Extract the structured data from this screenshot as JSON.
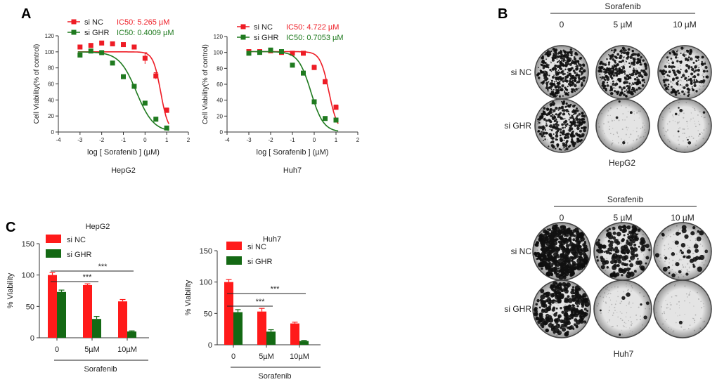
{
  "panels": {
    "A": "A",
    "B": "B",
    "C": "C"
  },
  "colors": {
    "si_nc": "#ee1c25",
    "si_ghr": "#1f7a1f",
    "bar_nc": "#ff1a1a",
    "bar_ghr": "#146914",
    "axis": "#333333"
  },
  "chart_data": [
    {
      "id": "hepg2_dose",
      "type": "scatter",
      "title": "HepG2",
      "xlabel": "log [ Sorafenib ] (µM)",
      "ylabel": "Cell Viability(% of control)",
      "xlim": [
        -4,
        2
      ],
      "ylim": [
        0,
        120
      ],
      "xticks": [
        -4,
        -3,
        -2,
        -1,
        0,
        1,
        2
      ],
      "yticks": [
        0,
        20,
        40,
        60,
        80,
        100,
        120
      ],
      "legend": {
        "position": "top-left"
      },
      "series": [
        {
          "name": "si NC",
          "ic50_label": "IC50: 5.265  µM",
          "x": [
            -3,
            -2.5,
            -2,
            -1.5,
            -1,
            -0.5,
            0,
            0.5,
            1
          ],
          "y": [
            106,
            108,
            111,
            110,
            109,
            106,
            92,
            70,
            27
          ],
          "err": [
            0,
            0,
            0,
            0,
            0,
            0,
            7,
            4,
            3
          ],
          "curve": {
            "top": 100,
            "bottom": 0,
            "logIC50": 0.721,
            "hill": 2.5
          }
        },
        {
          "name": "si GHR",
          "ic50_label": "IC50: 0.4009  µM",
          "x": [
            -3,
            -2.5,
            -2,
            -1.5,
            -1,
            -0.5,
            0,
            0.5,
            1
          ],
          "y": [
            96,
            101,
            99,
            86,
            69,
            57,
            36,
            16,
            5
          ],
          "err": [
            0,
            0,
            0,
            0,
            0,
            0,
            0,
            0,
            0
          ],
          "curve": {
            "top": 100,
            "bottom": 0,
            "logIC50": -0.397,
            "hill": 1.1
          }
        }
      ]
    },
    {
      "id": "huh7_dose",
      "type": "scatter",
      "title": "Huh7",
      "xlabel": "log [ Sorafenib ] (µM)",
      "ylabel": "Cell Viability(% of control)",
      "xlim": [
        -4,
        2
      ],
      "ylim": [
        0,
        120
      ],
      "xticks": [
        -4,
        -3,
        -2,
        -1,
        0,
        1,
        2
      ],
      "yticks": [
        0,
        20,
        40,
        60,
        80,
        100,
        120
      ],
      "legend": {
        "position": "top-left"
      },
      "series": [
        {
          "name": "si NC",
          "ic50_label": "IC50: 4.722  µM",
          "x": [
            -3,
            -2.5,
            -2,
            -1.5,
            -1,
            -0.5,
            0,
            0.5,
            1
          ],
          "y": [
            101,
            101,
            102,
            100,
            99,
            99,
            81,
            63,
            31
          ],
          "err": [
            0,
            0,
            0,
            0,
            0,
            0,
            3,
            3,
            3
          ],
          "curve": {
            "top": 101,
            "bottom": 0,
            "logIC50": 0.674,
            "hill": 2.2
          }
        },
        {
          "name": "si GHR",
          "ic50_label": "IC50: 0.7053  µM",
          "x": [
            -3,
            -2.5,
            -2,
            -1.5,
            -1,
            -0.5,
            0,
            0.5,
            1
          ],
          "y": [
            99,
            100,
            103,
            101,
            84,
            74,
            38,
            17,
            15
          ],
          "err": [
            0,
            0,
            0,
            0,
            0,
            0,
            0,
            0,
            0
          ],
          "curve": {
            "top": 101,
            "bottom": 0,
            "logIC50": -0.152,
            "hill": 1.5
          }
        }
      ]
    },
    {
      "id": "hepg2_bar",
      "type": "bar",
      "title": "HepG2",
      "ylabel": "% Viability",
      "xlabel": "Sorafenib",
      "categories": [
        "0",
        "5µM",
        "10µM"
      ],
      "ylim": [
        0,
        150
      ],
      "yticks": [
        0,
        50,
        100,
        150
      ],
      "legend": {
        "position": "top-left"
      },
      "series": [
        {
          "name": "si NC",
          "values": [
            100,
            84,
            58
          ],
          "err": [
            4,
            2,
            3
          ]
        },
        {
          "name": "si GHR",
          "values": [
            73,
            30,
            10
          ],
          "err": [
            3,
            4,
            1
          ]
        }
      ],
      "annotations": [
        {
          "text": "***",
          "from": 0,
          "to": 1
        },
        {
          "text": "***",
          "from": 0,
          "to": 2
        }
      ]
    },
    {
      "id": "huh7_bar",
      "type": "bar",
      "title": "Huh7",
      "ylabel": "% Viability",
      "xlabel": "Sorafenib",
      "categories": [
        "0",
        "5µM",
        "10µM"
      ],
      "ylim": [
        0,
        150
      ],
      "yticks": [
        0,
        50,
        100,
        150
      ],
      "legend": {
        "position": "top-left"
      },
      "series": [
        {
          "name": "si NC",
          "values": [
            100,
            53,
            34
          ],
          "err": [
            4,
            5,
            2
          ]
        },
        {
          "name": "si GHR",
          "values": [
            52,
            21,
            6
          ],
          "err": [
            4,
            3,
            1
          ]
        }
      ],
      "annotations": [
        {
          "text": "***",
          "from": 0,
          "to": 1
        },
        {
          "text": "***",
          "from": 0,
          "to": 2
        }
      ]
    }
  ],
  "colony_panels": [
    {
      "id": "hepg2_colony",
      "title": "HepG2",
      "treatment": "Sorafenib",
      "columns": [
        "0",
        "5 µM",
        "10 µM"
      ],
      "rows": [
        "si NC",
        "si GHR"
      ]
    },
    {
      "id": "huh7_colony",
      "title": "Huh7",
      "treatment": "Sorafenib",
      "columns": [
        "0",
        "5 µM",
        "10 µM"
      ],
      "rows": [
        "si NC",
        "si GHR"
      ]
    }
  ]
}
